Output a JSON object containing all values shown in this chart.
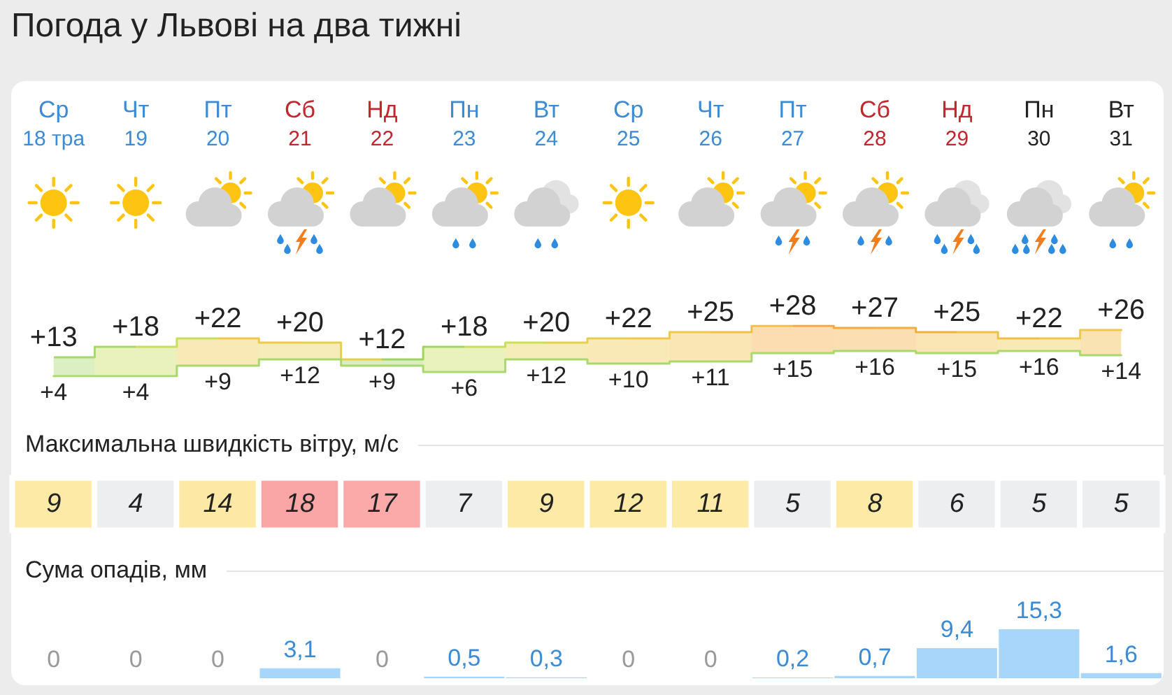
{
  "chart_data": [
    {
      "type": "step",
      "title": "Погода у Львові на два тижні",
      "categories": [
        "Ср 18 тра",
        "Чт 19",
        "Пт 20",
        "Сб 21",
        "Нд 22",
        "Пн 23",
        "Вт 24",
        "Ср 25",
        "Чт 26",
        "Пт 27",
        "Сб 28",
        "Нд 29",
        "Пн 30",
        "Вт 31"
      ],
      "series": [
        {
          "values": [
            13,
            18,
            22,
            20,
            12,
            18,
            20,
            22,
            25,
            28,
            27,
            25,
            22,
            26
          ],
          "value_labels": [
            "+13",
            "+18",
            "+22",
            "+20",
            "+12",
            "+18",
            "+20",
            "+22",
            "+25",
            "+28",
            "+27",
            "+25",
            "+22",
            "+26"
          ],
          "colors": [
            "#a6d86a",
            "#c9de5a",
            "#eec94a",
            "#e6cf4f",
            "#9fd463",
            "#c9de5a",
            "#e6cf4f",
            "#eec94a",
            "#f2bf45",
            "#f4a93c",
            "#f4ae3e",
            "#f2bf45",
            "#eec94a",
            "#f3b840"
          ],
          "lower": [
            4,
            4,
            9,
            12,
            9,
            6,
            12,
            10,
            11,
            15,
            16,
            15,
            16,
            14
          ],
          "upper": [
            13,
            18,
            22,
            20,
            12,
            18,
            20,
            22,
            25,
            28,
            27,
            25,
            22,
            26
          ]
        },
        {
          "values": [
            4,
            4,
            9,
            12,
            9,
            6,
            12,
            10,
            11,
            15,
            16,
            15,
            16,
            14
          ],
          "value_labels": [
            "+4",
            "+4",
            "+9",
            "+12",
            "+9",
            "+6",
            "+12",
            "+10",
            "+11",
            "+15",
            "+16",
            "+15",
            "+16",
            "+14"
          ],
          "color": "#a8d86e"
        }
      ],
      "marker": "none",
      "tick_labels": "x"
    },
    {
      "type": "heatmap",
      "title": "Максимальна швидкість вітру, м/с",
      "categories": [
        null,
        null,
        null,
        null,
        null,
        null,
        null,
        null,
        null,
        null,
        null,
        null,
        null,
        null
      ],
      "y_categories": [
        null
      ],
      "cells": [
        [
          9,
          4,
          14,
          18,
          17,
          7,
          9,
          12,
          11,
          5,
          8,
          6,
          5,
          5
        ]
      ],
      "colors": [
        "#fdeaa7",
        "#eceef0",
        "#fde8a5",
        "#fba6a6",
        "#fba9a9",
        "#eceef0",
        "#fdeaa7",
        "#fdeaa7",
        "#fdeaa7",
        "#eceef0",
        "#fdeaa7",
        "#eceef0",
        "#eceef0",
        "#eceef0"
      ],
      "data_labels": true,
      "tick_labels": false
    },
    {
      "type": "bar",
      "title": "Сума опадів, мм",
      "categories": [
        null,
        null,
        null,
        null,
        null,
        null,
        null,
        null,
        null,
        null,
        null,
        null,
        null,
        null
      ],
      "values": [
        0,
        0,
        0,
        3.1,
        0,
        0.5,
        0.3,
        0,
        0,
        0.2,
        0.7,
        9.4,
        15.3,
        1.6
      ],
      "value_labels": [
        "0",
        "0",
        "0",
        "3,1",
        "0",
        "0,5",
        "0,3",
        "0",
        "0",
        "0,2",
        "0,7",
        "9,4",
        "15,3",
        "1,6"
      ],
      "color": "#a8d5fa",
      "tick_labels": false
    }
  ]
}
